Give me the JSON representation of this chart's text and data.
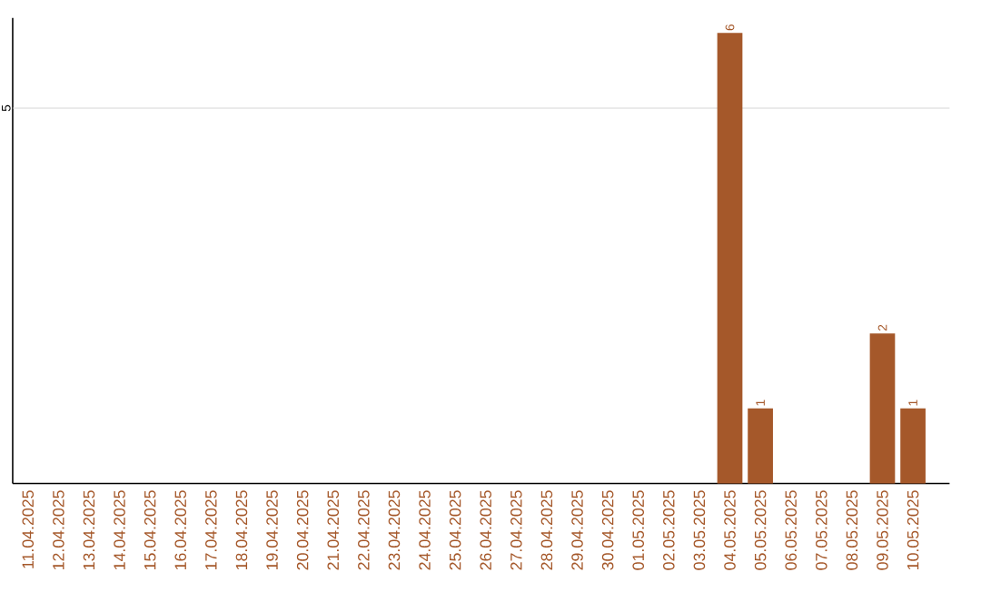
{
  "chart_data": {
    "type": "bar",
    "categories": [
      "11.04.2025",
      "12.04.2025",
      "13.04.2025",
      "14.04.2025",
      "15.04.2025",
      "16.04.2025",
      "17.04.2025",
      "18.04.2025",
      "19.04.2025",
      "20.04.2025",
      "21.04.2025",
      "22.04.2025",
      "23.04.2025",
      "24.04.2025",
      "25.04.2025",
      "26.04.2025",
      "27.04.2025",
      "28.04.2025",
      "29.04.2025",
      "30.04.2025",
      "01.05.2025",
      "02.05.2025",
      "03.05.2025",
      "04.05.2025",
      "05.05.2025",
      "06.05.2025",
      "07.05.2025",
      "08.05.2025",
      "09.05.2025",
      "10.05.2025"
    ],
    "values": [
      null,
      null,
      null,
      null,
      null,
      null,
      null,
      null,
      null,
      null,
      null,
      null,
      null,
      null,
      null,
      null,
      null,
      null,
      null,
      null,
      null,
      null,
      null,
      6,
      1,
      null,
      null,
      null,
      2,
      1
    ],
    "data_labels": true,
    "color": "#a5582a",
    "ylim": [
      0,
      6.2
    ],
    "ref_lines": [
      {
        "axis": "y",
        "value": 5,
        "label": "5",
        "color": "#cccccc"
      }
    ]
  }
}
